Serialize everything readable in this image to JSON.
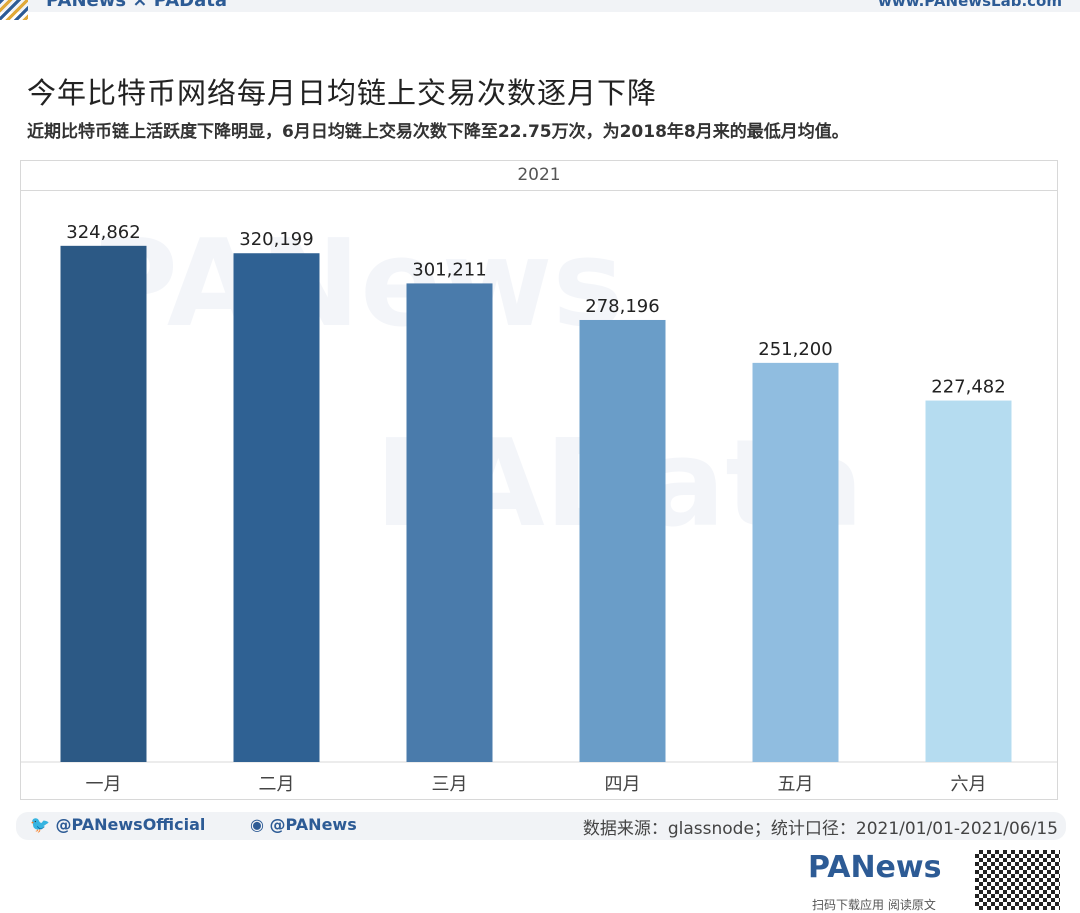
{
  "header": {
    "brand": "PANews × PAData",
    "url": "www.PANewsLab.com"
  },
  "title": "今年比特币网络每月日均链上交易次数逐月下降",
  "subtitle": "近期比特币链上活跃度下降明显，6月日均链上交易次数下降至22.75万次，为2018年8月来的最低月均值。",
  "footer": {
    "twitter": "@PANewsOfficial",
    "weibo": "@PANews",
    "source": "数据来源：glassnode；统计口径：2021/01/01-2021/06/15",
    "logo": "PANews",
    "scan_text": "扫码下载应用 阅读原文"
  },
  "chart_data": {
    "type": "bar",
    "title": "2021",
    "categories": [
      "一月",
      "二月",
      "三月",
      "四月",
      "五月",
      "六月"
    ],
    "values": [
      324862,
      320199,
      301211,
      278196,
      251200,
      227482
    ],
    "labels": [
      "324,862",
      "320,199",
      "301,211",
      "278,196",
      "251,200",
      "227,482"
    ],
    "colors": [
      "#2c5985",
      "#2f6193",
      "#4a7bab",
      "#6a9dc8",
      "#90bde0",
      "#b5dcf0"
    ],
    "xlabel": "",
    "ylabel": "",
    "ylim": [
      0,
      360000
    ],
    "grid": false
  }
}
